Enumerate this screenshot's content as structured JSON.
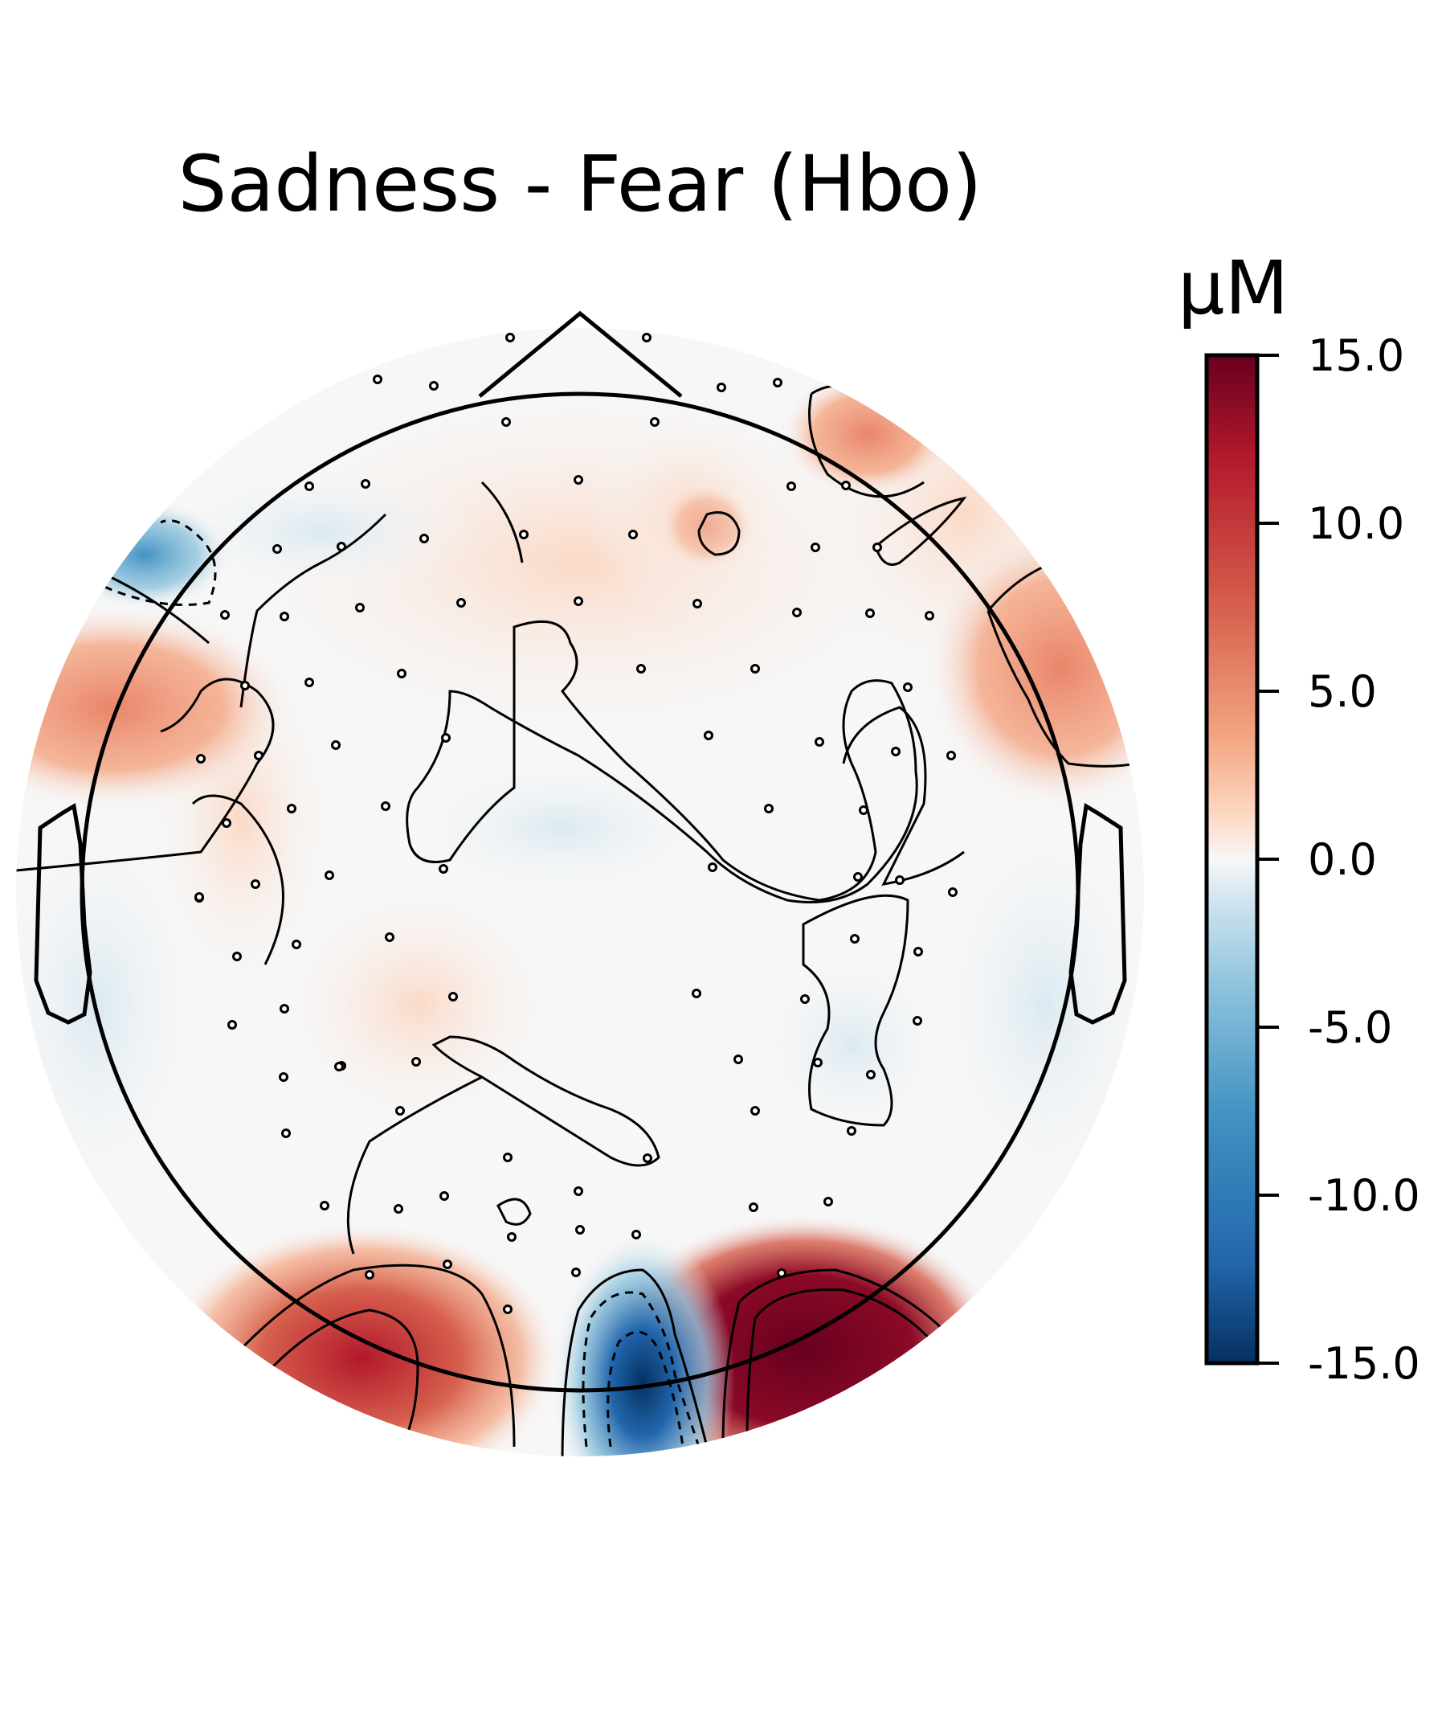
{
  "chart_data": {
    "type": "heatmap",
    "title": "Sadness - Fear (Hbo)",
    "colorbar": {
      "unit": "µM",
      "range": [
        -15.0,
        15.0
      ],
      "ticks": [
        "15.0",
        "10.0",
        "5.0",
        "0.0",
        "-5.0",
        "-10.0",
        "-15.0"
      ],
      "tick_values": [
        15,
        10,
        5,
        0,
        -5,
        -10,
        -15
      ],
      "colormap": "RdBu_r"
    },
    "colors": {
      "neg_strong": "#053061",
      "neg_mid": "#4393c3",
      "neutral": "#f7f7f7",
      "pos_mid": "#f4a582",
      "pos_strong": "#67001f"
    },
    "hotspots": [
      {
        "region": "left-occipital",
        "value": 11
      },
      {
        "region": "mid-occipital",
        "value": -15
      },
      {
        "region": "right-occipital",
        "value": 15
      },
      {
        "region": "left-temporal",
        "value": 8
      },
      {
        "region": "right-temporal",
        "value": 6
      },
      {
        "region": "right-frontal",
        "value": 8
      },
      {
        "region": "left-frontal",
        "value": -7
      },
      {
        "region": "frontal-central",
        "value": 3
      }
    ]
  }
}
